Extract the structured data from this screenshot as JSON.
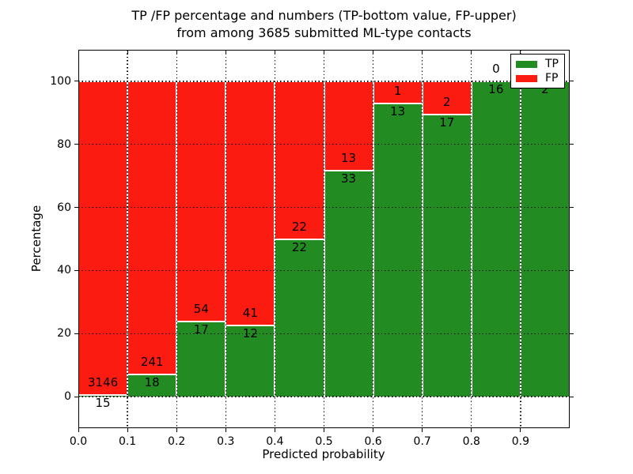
{
  "chart_data": {
    "type": "bar",
    "stacked": true,
    "normalized": "each bar totals 100%",
    "title_lines": [
      "TP /FP percentage and numbers (TP-bottom value, FP-upper)",
      "from among 3685 submitted ML-type contacts"
    ],
    "xlabel": "Predicted probability",
    "ylabel": "Percentage",
    "xlim": [
      0.0,
      1.0
    ],
    "ylim": [
      -10,
      110
    ],
    "x_tick_labels": [
      "0.0",
      "0.1",
      "0.2",
      "0.3",
      "0.4",
      "0.5",
      "0.6",
      "0.7",
      "0.8",
      "0.9"
    ],
    "y_ticks": [
      0,
      20,
      40,
      60,
      80,
      100
    ],
    "bin_edges": [
      0.0,
      0.1,
      0.2,
      0.3,
      0.4,
      0.5,
      0.6,
      0.7,
      0.8,
      0.9,
      1.0
    ],
    "series": [
      {
        "name": "TP",
        "color": "#228b22",
        "counts": [
          15,
          18,
          17,
          12,
          22,
          33,
          13,
          17,
          16,
          2
        ]
      },
      {
        "name": "FP",
        "color": "#fb1b10",
        "counts": [
          3146,
          241,
          54,
          41,
          22,
          13,
          1,
          2,
          0,
          0
        ]
      }
    ],
    "tp_percent_per_bin": [
      0.47,
      6.95,
      23.94,
      22.64,
      50.0,
      71.74,
      92.86,
      89.47,
      100.0,
      100.0
    ],
    "total_contacts": 3685,
    "grid": "dotted black, horizontal at y ticks and vertical at x ticks, full height",
    "bar_edge_color": "#ffffff",
    "legend": {
      "position": "upper right",
      "entries": [
        {
          "label": "TP",
          "color": "#228b22"
        },
        {
          "label": "FP",
          "color": "#fb1b10"
        }
      ]
    }
  }
}
